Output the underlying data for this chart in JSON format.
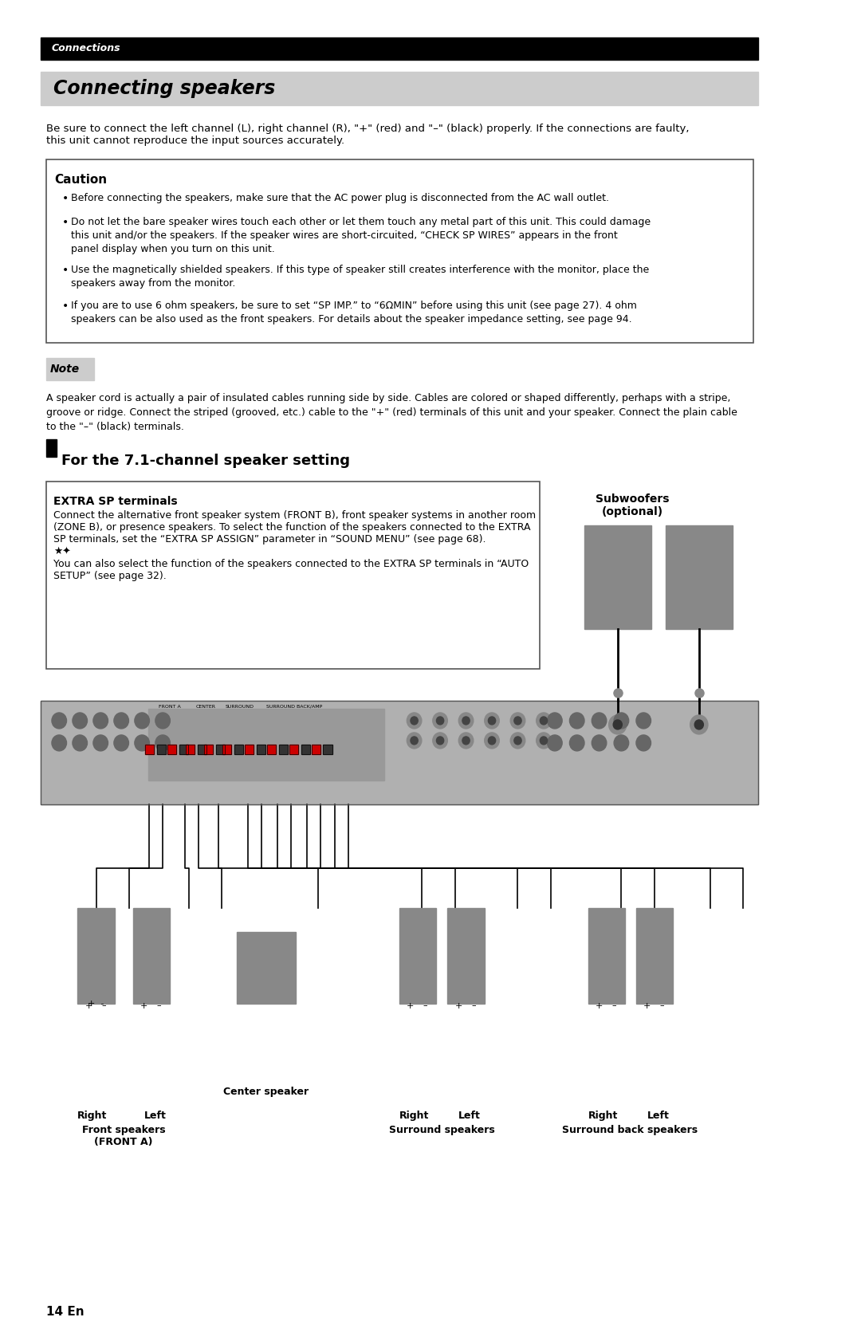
{
  "page_bg": "#ffffff",
  "top_bar_color": "#000000",
  "top_bar_text": "Connections",
  "top_bar_text_color": "#ffffff",
  "section_header_bg": "#cccccc",
  "section_header_text": "Connecting speakers",
  "section_header_text_color": "#000000",
  "intro_text": "Be sure to connect the left channel (L), right channel (R), \"+\" (red) and \"–\" (black) properly. If the connections are faulty,\nthis unit cannot reproduce the input sources accurately.",
  "caution_border_color": "#555555",
  "caution_title": "Caution",
  "caution_bullets": [
    "Before connecting the speakers, make sure that the AC power plug is disconnected from the AC wall outlet.",
    "Do not let the bare speaker wires touch each other or let them touch any metal part of this unit. This could damage\nthis unit and/or the speakers. If the speaker wires are short-circuited, “CHECK SP WIRES” appears in the front\npanel display when you turn on this unit.",
    "Use the magnetically shielded speakers. If this type of speaker still creates interference with the monitor, place the\nspeakers away from the monitor.",
    "If you are to use 6 ohm speakers, be sure to set “SP IMP.” to “6ΩMIN” before using this unit (see page 27). 4 ohm\nspeakers can be also used as the front speakers. For details about the speaker impedance setting, see page 94."
  ],
  "note_bg": "#cccccc",
  "note_title": "Note",
  "note_text": "A speaker cord is actually a pair of insulated cables running side by side. Cables are colored or shaped differently, perhaps with a stripe,\ngroove or ridge. Connect the striped (grooved, etc.) cable to the \"+\" (red) terminals of this unit and your speaker. Connect the plain cable\nto the \"–\" (black) terminals.",
  "section2_title": "For the 7.1-channel speaker setting",
  "extra_sp_title": "EXTRA SP terminals",
  "extra_sp_text": "Connect the alternative front speaker system (FRONT B), front speaker systems in another room\n(ZONE B), or presence speakers. To select the function of the speakers connected to the EXTRA\nSP terminals, set the “EXTRA SP ASSIGN” parameter in “SOUND MENU” (see page 68).\n★\nYou can also select the function of the speakers connected to the EXTRA SP terminals in “AUTO\nSETUP” (see page 32).",
  "subwoofers_label": "Subwoofers\n(optional)",
  "speaker_labels": {
    "right_front": "Right",
    "left_front": "Left",
    "front_speakers": "Front speakers\n(FRONT A)",
    "center": "Center speaker",
    "right_surround": "Right",
    "left_surround": "Left",
    "surround_speakers": "Surround speakers",
    "right_back": "Right",
    "left_back": "Left",
    "surround_back": "Surround back speakers"
  },
  "page_number": "14 En",
  "receiver_color": "#b0b0b0",
  "speaker_box_color": "#888888",
  "subwoofer_box_color": "#888888",
  "wire_color": "#000000"
}
